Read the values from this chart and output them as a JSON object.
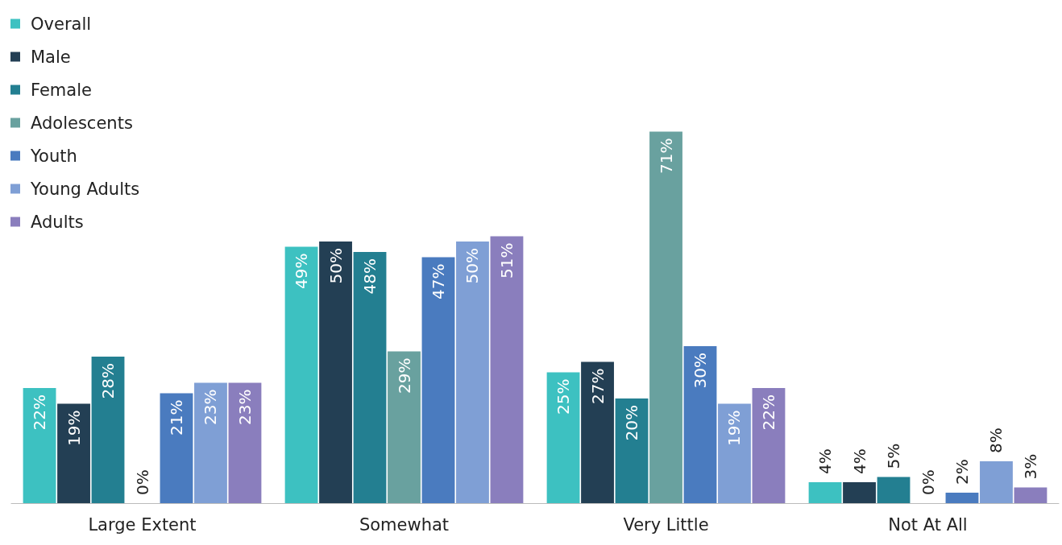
{
  "chart_data": {
    "type": "bar",
    "categories": [
      "Large Extent",
      "Somewhat",
      "Very Little",
      "Not At All"
    ],
    "legend": "top left",
    "series": [
      {
        "name": "Overall",
        "color": "#3dc1c1",
        "values": [
          22,
          49,
          25,
          4
        ],
        "value_labels": [
          "22%",
          "49%",
          "25%",
          "4%"
        ]
      },
      {
        "name": "Male",
        "color": "#233f54",
        "values": [
          19,
          50,
          27,
          4
        ],
        "value_labels": [
          "19%",
          "50%",
          "27%",
          "4%"
        ]
      },
      {
        "name": "Female",
        "color": "#237f91",
        "values": [
          28,
          48,
          20,
          5
        ],
        "value_labels": [
          "28%",
          "48%",
          "20%",
          "5%"
        ]
      },
      {
        "name": "Adolescents",
        "color": "#69a19f",
        "values": [
          0,
          29,
          71,
          0
        ],
        "value_labels": [
          "0%",
          "29%",
          "71%",
          "0%"
        ]
      },
      {
        "name": "Youth",
        "color": "#4a7bbf",
        "values": [
          21,
          47,
          30,
          2
        ],
        "value_labels": [
          "21%",
          "47%",
          "30%",
          "2%"
        ]
      },
      {
        "name": "Young Adults",
        "color": "#7f9fd5",
        "values": [
          23,
          50,
          19,
          8
        ],
        "value_labels": [
          "23%",
          "50%",
          "19%",
          "8%"
        ]
      },
      {
        "name": "Adults",
        "color": "#8a7ebd",
        "values": [
          23,
          51,
          22,
          3
        ],
        "value_labels": [
          "23%",
          "51%",
          "22%",
          "3%"
        ]
      }
    ]
  }
}
